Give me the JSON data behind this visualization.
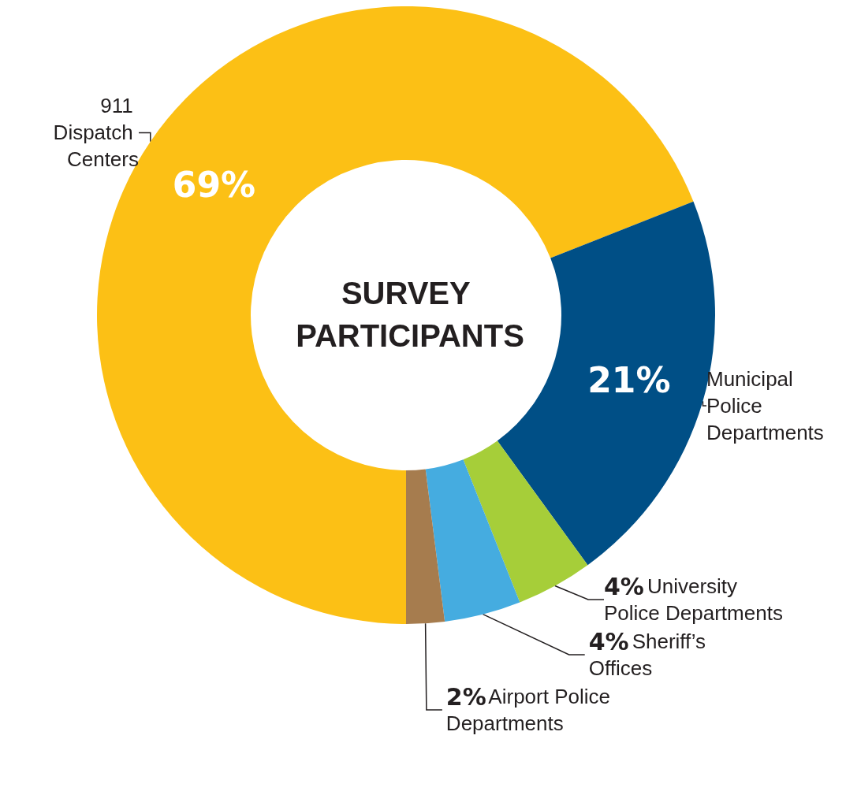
{
  "chart_data": {
    "type": "donut",
    "title": "SURVEY PARTICIPANTS",
    "categories": [
      "911 Dispatch Centers",
      "Municipal Police Departments",
      "University Police Departments",
      "Sheriff’s Offices",
      "Airport Police Departments"
    ],
    "values": [
      69,
      21,
      4,
      4,
      2
    ],
    "colors": [
      "#fcc015",
      "#004f86",
      "#a6ce39",
      "#45ace0",
      "#a67c4e"
    ],
    "value_labels": [
      "69%",
      "21%",
      "4%",
      "4%",
      "2%"
    ],
    "legend": false
  }
}
